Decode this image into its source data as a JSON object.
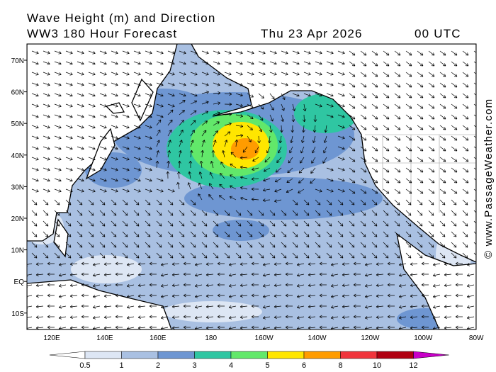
{
  "header": {
    "title": "Wave Height (m) and Direction",
    "subtitle": "WW3 180 Hour Forecast",
    "date": "Thu 23 Apr 2026",
    "time": "00 UTC"
  },
  "map": {
    "lat_labels": [
      "70N",
      "60N",
      "50N",
      "40N",
      "30N",
      "20N",
      "10N",
      "EQ",
      "10S"
    ],
    "lon_labels": [
      "120E",
      "140E",
      "160E",
      "180",
      "160W",
      "140W",
      "120W",
      "100W",
      "80W"
    ]
  },
  "legend": {
    "levels": [
      0.5,
      1,
      2,
      3,
      4,
      5,
      6,
      8,
      10,
      12
    ],
    "colors": [
      "#ffffff",
      "#dde6f4",
      "#a9c0e2",
      "#6e96d2",
      "#2fc6a2",
      "#62e86a",
      "#ffe600",
      "#ff9c00",
      "#f0343c",
      "#b00012",
      "#c800c8"
    ]
  },
  "credit": "© www.PassageWeather.com"
}
